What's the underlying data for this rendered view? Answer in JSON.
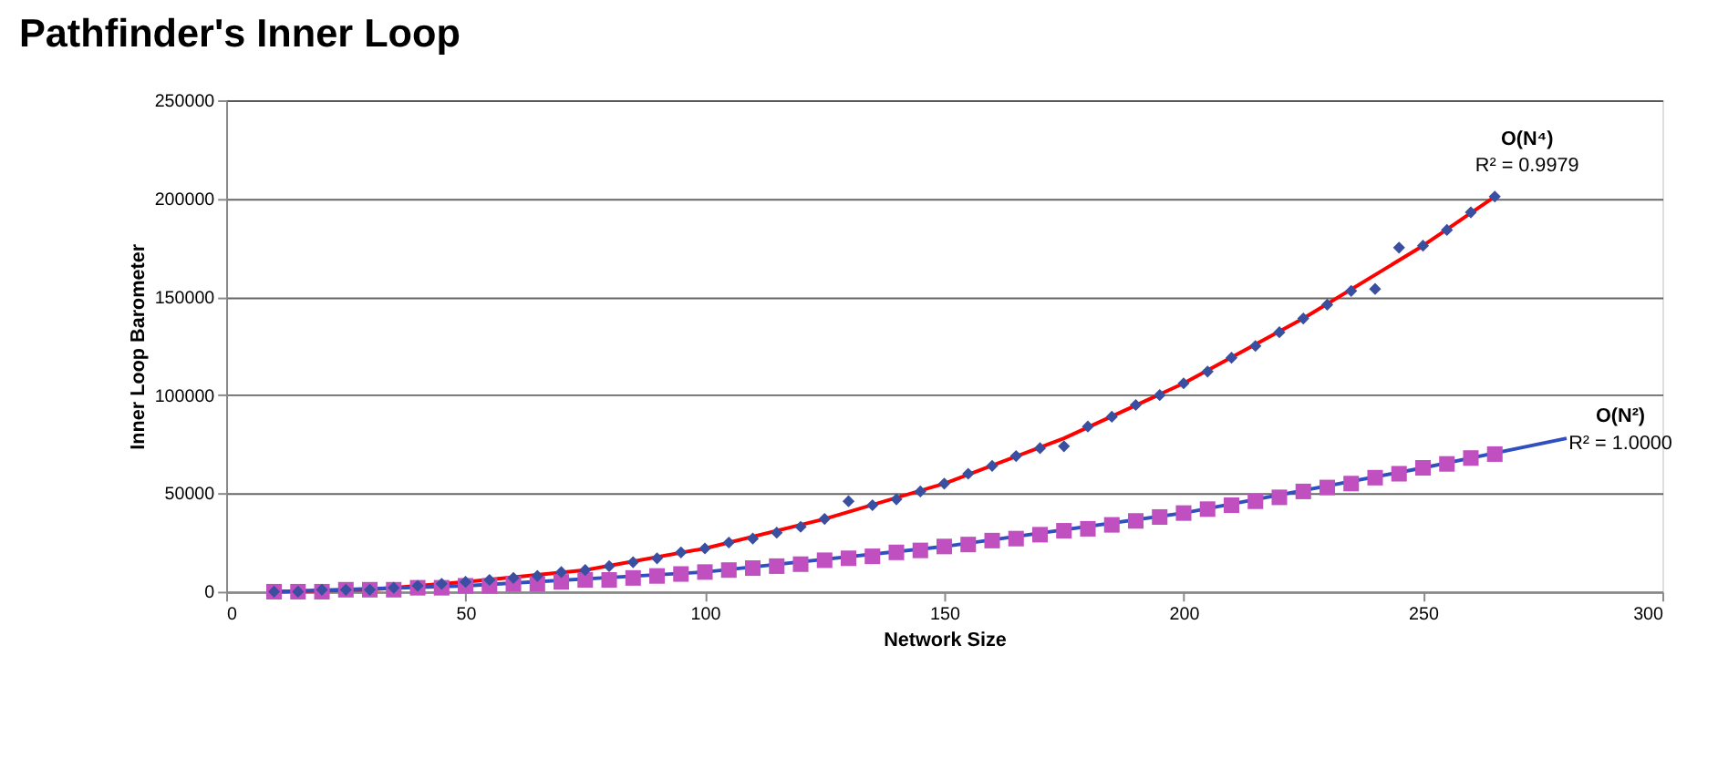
{
  "chart_data": {
    "type": "scatter",
    "title": "Pathfinder's Inner Loop",
    "xlabel": "Network Size",
    "ylabel": "Inner Loop Barometer",
    "xlim": [
      0,
      300
    ],
    "xticks": [
      0,
      50,
      100,
      150,
      200,
      250,
      300
    ],
    "ylim": [
      0,
      250000
    ],
    "yticks": [
      0,
      50000,
      100000,
      150000,
      200000,
      250000
    ],
    "grid": "y",
    "legend": false,
    "x": [
      10,
      15,
      20,
      25,
      30,
      35,
      40,
      45,
      50,
      55,
      60,
      65,
      70,
      75,
      80,
      85,
      90,
      95,
      100,
      105,
      110,
      115,
      120,
      125,
      130,
      135,
      140,
      145,
      150,
      155,
      160,
      165,
      170,
      175,
      180,
      185,
      190,
      195,
      200,
      205,
      210,
      215,
      220,
      225,
      230,
      235,
      240,
      245,
      250,
      255,
      260,
      265
    ],
    "series": [
      {
        "marker": "diamond",
        "color": "#3a4fa0",
        "values": [
          0,
          0,
          1000,
          1000,
          1000,
          2000,
          3000,
          4000,
          5000,
          6000,
          7000,
          8000,
          10000,
          11000,
          13000,
          15000,
          17000,
          20000,
          22000,
          25000,
          27000,
          30000,
          33000,
          37000,
          46000,
          44000,
          47000,
          51000,
          55000,
          60000,
          64000,
          69000,
          73000,
          74000,
          84000,
          89000,
          95000,
          100000,
          106000,
          112000,
          119000,
          125000,
          132000,
          139000,
          146000,
          153000,
          154000,
          175000,
          176000,
          184000,
          193000,
          201000
        ]
      },
      {
        "marker": "square",
        "color": "#c050c0",
        "values": [
          0,
          0,
          0,
          1000,
          1000,
          1000,
          2000,
          2000,
          3000,
          3000,
          4000,
          4000,
          5000,
          6000,
          6000,
          7000,
          8000,
          9000,
          10000,
          11000,
          12000,
          13000,
          14000,
          16000,
          17000,
          18000,
          20000,
          21000,
          23000,
          24000,
          26000,
          27000,
          29000,
          31000,
          32000,
          34000,
          36000,
          38000,
          40000,
          42000,
          44000,
          46000,
          48000,
          51000,
          53000,
          55000,
          58000,
          60000,
          63000,
          65000,
          68000,
          70000
        ]
      },
      {
        "type": "line",
        "marker": "none",
        "line_style": "solid",
        "color": "#ff0000",
        "x": [
          10,
          30,
          50,
          75,
          100,
          125,
          150,
          175,
          200,
          225,
          250,
          265
        ],
        "values": [
          0,
          1000,
          5000,
          11000,
          22000,
          37000,
          55000,
          78000,
          106000,
          139000,
          176000,
          201000
        ]
      },
      {
        "type": "line",
        "marker": "none",
        "line_style": "solid",
        "color": "#3050c0",
        "x": [
          10,
          50,
          100,
          150,
          200,
          250,
          280
        ],
        "values": [
          0,
          3000,
          10000,
          23000,
          40000,
          63000,
          78000
        ]
      }
    ],
    "annotations": [
      "O(N⁴)",
      "R² = 0.9979",
      "O(N²)",
      "R² = 1.0000"
    ]
  }
}
